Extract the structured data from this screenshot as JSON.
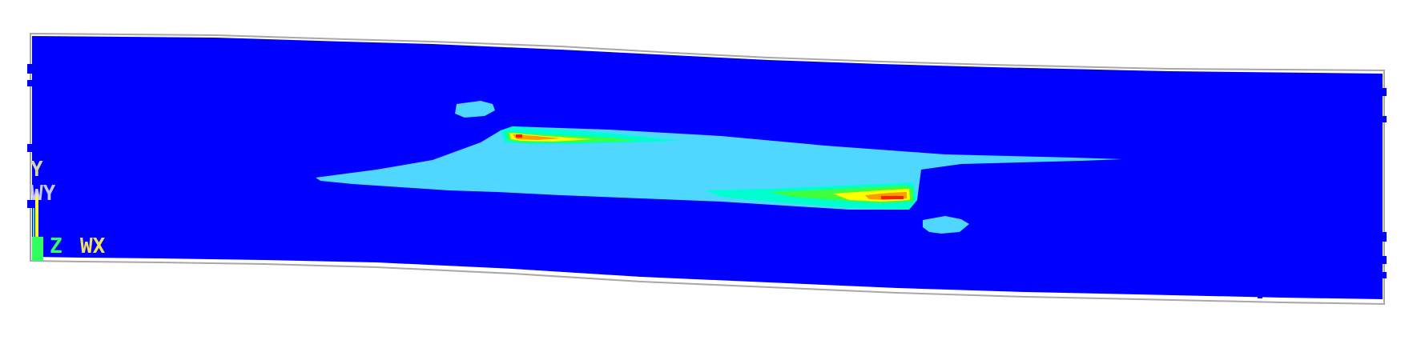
{
  "colors": {
    "background": "#ffffff",
    "outline": "#a8a8a8",
    "band_1": "#0000ff",
    "band_2": "#4fd7ff",
    "band_3": "#00ffd0",
    "band_4": "#3dff3d",
    "band_5": "#ffff00",
    "band_6": "#ff9900",
    "band_7": "#ff1a00",
    "triad_y": "#d6d6a0",
    "triad_wy": "#c8c8ff",
    "triad_z": "#30ff60",
    "triad_wx": "#f0e060",
    "triad_axis": "#ffff30"
  },
  "triad": {
    "label_y": "Y",
    "label_wy": "WY",
    "label_z": "Z",
    "label_wx": "WX"
  }
}
